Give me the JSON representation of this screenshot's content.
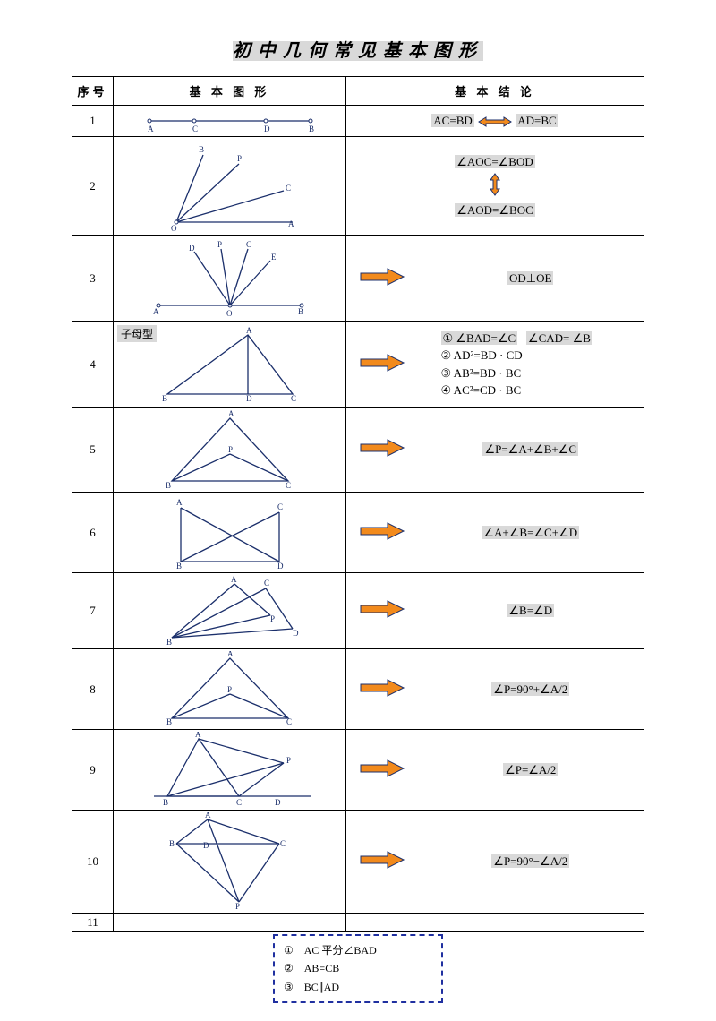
{
  "title": "初中几何常见基本图形",
  "headers": {
    "num": "序号",
    "fig": "基 本 图 形",
    "con": "基 本 结 论"
  },
  "colors": {
    "stroke": "#1b2f6b",
    "arrow_fill": "#f28a1c",
    "arrow_stroke": "#1b2f6b",
    "highlight_bg": "#d9d9d9",
    "dash_border": "#2030a0"
  },
  "rows": [
    {
      "num": "1",
      "con_html": "<span class='hl'>AC=BD</span> <svg width='40' height='14' style='vertical-align:middle'><polygon points='2,7 10,2 10,5 30,5 30,2 38,7 30,12 30,9 10,9 10,12' fill='#f28a1c' stroke='#1b2f6b' stroke-width='1'/></svg> <span class='hl'>AD=BC</span>"
    },
    {
      "num": "2",
      "con_html": "<span class='hl'>∠AOC=∠BOD</span><br><svg width='20' height='26' style='margin:4px 0'><g fill='#f28a1c' stroke='#1b2f6b' stroke-width='1'><polygon points='10,1 15,8 12,8 12,18 15,18 10,25 5,18 8,18 8,8 5,8'/></g></svg><br><span class='hl'>∠AOD=∠BOC</span>"
    },
    {
      "num": "3",
      "con_html": "<span class='hl'>OD⊥OE</span>",
      "arrow": true
    },
    {
      "num": "4",
      "tag": "子母型",
      "arrow": true,
      "con_html": "<div class='conlines'><span class='hl'>① ∠BAD=∠C</span>&nbsp;&nbsp;&nbsp;<span class='hl'>∠CAD= ∠B</span><br>② AD²=BD · CD<br>③ AB²=BD · BC<br>④ AC²=CD · BC</div>"
    },
    {
      "num": "5",
      "arrow": true,
      "con_html": "<span class='hl'>∠P=∠A+∠B+∠C</span>"
    },
    {
      "num": "6",
      "arrow": true,
      "con_html": "<span class='hl'>∠A+∠B=∠C+∠D</span>"
    },
    {
      "num": "7",
      "arrow": true,
      "con_html": "<span class='hl'>∠B=∠D</span>"
    },
    {
      "num": "8",
      "arrow": true,
      "con_html": "<span class='hl'>∠P=90°+∠A/2</span>"
    },
    {
      "num": "9",
      "arrow": true,
      "con_html": "<span class='hl'>∠P=∠A/2</span>"
    },
    {
      "num": "10",
      "arrow": true,
      "con_html": "<span class='hl'>∠P=90°−∠A/2</span>"
    },
    {
      "num": "11",
      "con_html": ""
    }
  ],
  "footnote": [
    "①　AC 平分∠BAD",
    "②　AB=CB",
    "③　BC∥AD"
  ]
}
